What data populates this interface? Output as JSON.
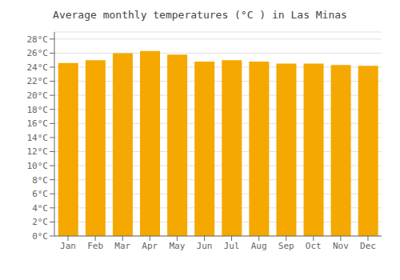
{
  "chart_data": {
    "type": "bar",
    "title": "Average monthly temperatures (°C ) in Las Minas",
    "categories": [
      "Jan",
      "Feb",
      "Mar",
      "Apr",
      "May",
      "Jun",
      "Jul",
      "Aug",
      "Sep",
      "Oct",
      "Nov",
      "Dec"
    ],
    "values": [
      24.6,
      25.0,
      26.0,
      26.3,
      25.8,
      24.8,
      25.0,
      24.8,
      24.5,
      24.5,
      24.3,
      24.2
    ],
    "color": "#F5A800",
    "ylim": [
      0,
      29
    ],
    "yticks": [
      {
        "value": 0,
        "label": "0°C"
      },
      {
        "value": 2,
        "label": "2°C"
      },
      {
        "value": 4,
        "label": "4°C"
      },
      {
        "value": 6,
        "label": "6°C"
      },
      {
        "value": 8,
        "label": "8°C"
      },
      {
        "value": 10,
        "label": "10°C"
      },
      {
        "value": 12,
        "label": "12°C"
      },
      {
        "value": 14,
        "label": "14°C"
      },
      {
        "value": 16,
        "label": "16°C"
      },
      {
        "value": 18,
        "label": "18°C"
      },
      {
        "value": 20,
        "label": "20°C"
      },
      {
        "value": 22,
        "label": "22°C"
      },
      {
        "value": 24,
        "label": "24°C"
      },
      {
        "value": 26,
        "label": "26°C"
      },
      {
        "value": 28,
        "label": "28°C"
      }
    ],
    "grid": true
  }
}
